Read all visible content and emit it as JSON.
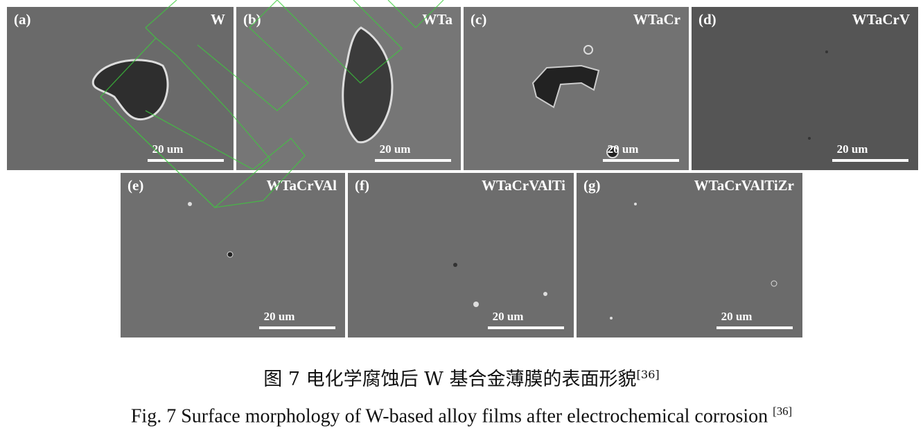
{
  "figure": {
    "panels": [
      {
        "label": "(a)",
        "name": "W",
        "scale_bar": "20 um"
      },
      {
        "label": "(b)",
        "name": "WTa",
        "scale_bar": "20 um"
      },
      {
        "label": "(c)",
        "name": "WTaCr",
        "scale_bar": "20 um"
      },
      {
        "label": "(d)",
        "name": "WTaCrV",
        "scale_bar": "20 um"
      },
      {
        "label": "(e)",
        "name": "WTaCrVAl",
        "scale_bar": "20 um"
      },
      {
        "label": "(f)",
        "name": "WTaCrVAlTi",
        "scale_bar": "20 um"
      },
      {
        "label": "(g)",
        "name": "WTaCrVAlTiZr",
        "scale_bar": "20 um"
      }
    ],
    "caption_cn": "图 7 电化学腐蚀后 W 基合金薄膜的表面形貌",
    "caption_cn_ref": "[36]",
    "caption_en": "Fig. 7 Surface morphology of W-based alloy films after electrochemical corrosion ",
    "caption_en_ref": "[36]",
    "colors": {
      "sem_background": "#6e6e6e",
      "watermark": "#3ccc3c"
    }
  }
}
